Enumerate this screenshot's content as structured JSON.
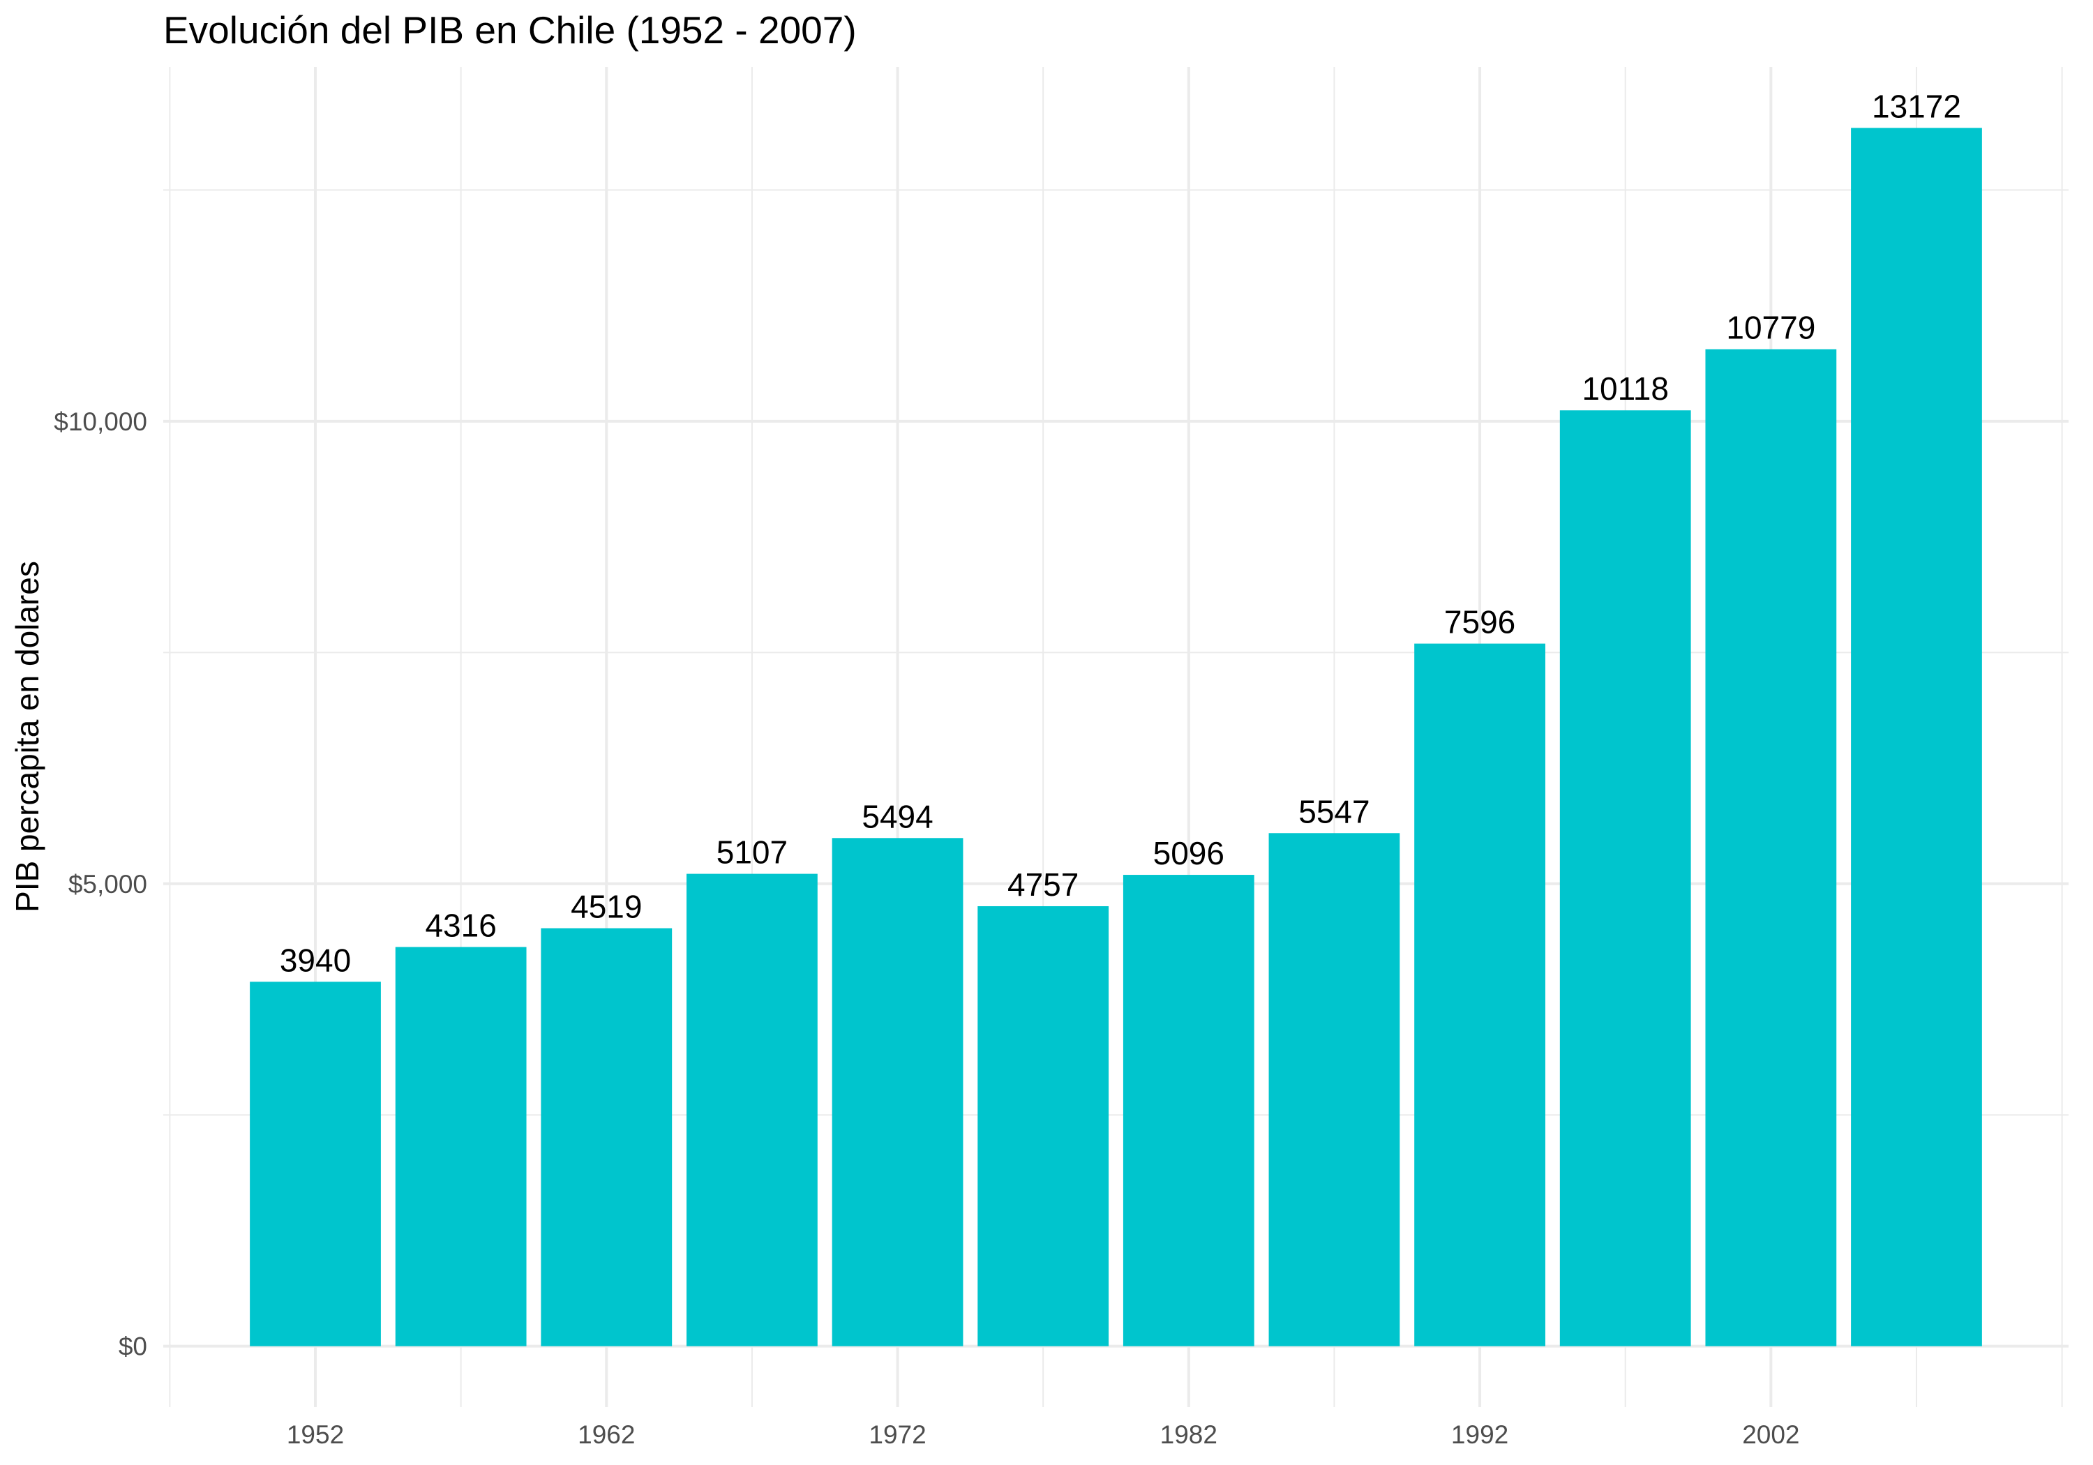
{
  "chart_data": {
    "type": "bar",
    "title": "Evolución del PIB en Chile (1952 - 2007)",
    "xlabel": "",
    "ylabel": "PIB percapita en dolares",
    "x": [
      1952,
      1957,
      1962,
      1967,
      1972,
      1977,
      1982,
      1987,
      1992,
      1997,
      2002,
      2007
    ],
    "values": [
      3940,
      4316,
      4519,
      5107,
      5494,
      4757,
      5096,
      5547,
      7596,
      10118,
      10779,
      13172
    ],
    "xlim": [
      1946.775,
      2012.225
    ],
    "ylim": [
      -658.6,
      13830.6
    ],
    "x_ticks": [
      1952,
      1962,
      1972,
      1982,
      1992,
      2002
    ],
    "x_tick_labels": [
      "1952",
      "1962",
      "1972",
      "1982",
      "1992",
      "2002"
    ],
    "x_minor_ticks": [
      1947,
      1957,
      1967,
      1977,
      1987,
      1997,
      2007,
      2012
    ],
    "y_ticks": [
      0,
      5000,
      10000
    ],
    "y_tick_labels": [
      "$0",
      "$5,000",
      "$10,000"
    ],
    "y_minor_ticks": [
      2500,
      7500,
      12500
    ],
    "grid": true,
    "colors": {
      "bar": "#00C5CD",
      "grid": "#EBEBEB",
      "tick_text": "#4D4D4D",
      "text": "#000000",
      "background": "#FFFFFF"
    }
  }
}
